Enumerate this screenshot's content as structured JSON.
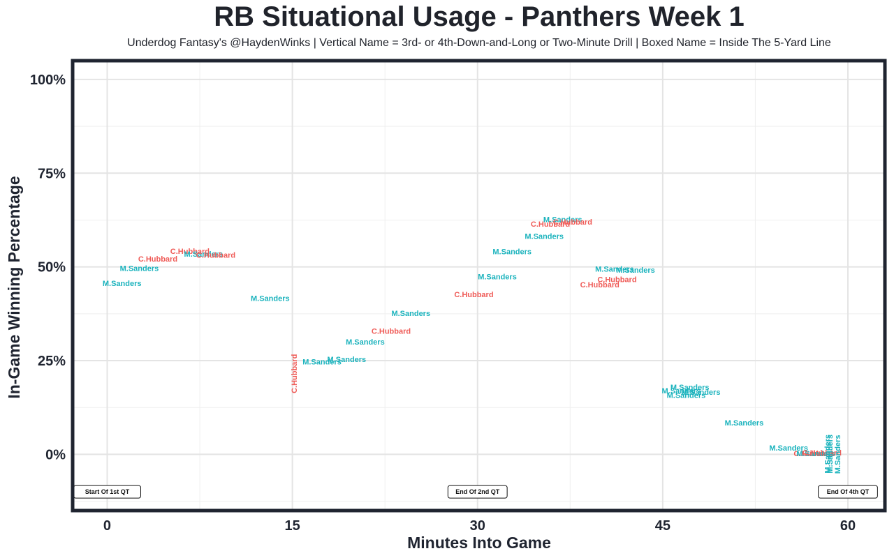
{
  "colors": {
    "sanders": "#1bb3bd",
    "hubbard": "#ef5b57",
    "frame": "#1f2430",
    "grid": "#e4e4e4"
  },
  "chart_data": {
    "type": "scatter",
    "title": "RB Situational Usage - Panthers Week 1",
    "subtitle": "Underdog Fantasy's @HaydenWinks | Vertical Name = 3rd- or 4th-Down-and-Long or Two-Minute Drill | Boxed Name = Inside The 5-Yard Line",
    "xlabel": "Minutes Into Game",
    "ylabel": "In-Game Winning Percentage",
    "xlim": [
      -2.8,
      63
    ],
    "ylim": [
      -15,
      105
    ],
    "x_ticks": [
      0,
      15,
      30,
      45,
      60
    ],
    "x_tick_labels": [
      "0",
      "15",
      "30",
      "45",
      "60"
    ],
    "y_ticks": [
      0,
      25,
      50,
      75,
      100
    ],
    "y_tick_labels": [
      "0%",
      "25%",
      "50%",
      "75%",
      "100%"
    ],
    "players": {
      "sanders": "M.Sanders",
      "hubbard": "C.Hubbard"
    },
    "points": [
      {
        "x": 1.2,
        "y": 45.5,
        "p": "sanders",
        "v": false
      },
      {
        "x": 2.6,
        "y": 49.5,
        "p": "sanders",
        "v": false
      },
      {
        "x": 4.1,
        "y": 52,
        "p": "hubbard",
        "v": false
      },
      {
        "x": 6.7,
        "y": 54,
        "p": "hubbard",
        "v": false
      },
      {
        "x": 7.8,
        "y": 53.3,
        "p": "sanders",
        "v": false
      },
      {
        "x": 8.8,
        "y": 53,
        "p": "hubbard",
        "v": false
      },
      {
        "x": 13.2,
        "y": 41.5,
        "p": "sanders",
        "v": false
      },
      {
        "x": 15.2,
        "y": 21.5,
        "p": "hubbard",
        "v": true
      },
      {
        "x": 17.4,
        "y": 24.5,
        "p": "sanders",
        "v": false
      },
      {
        "x": 19.4,
        "y": 25.2,
        "p": "sanders",
        "v": false
      },
      {
        "x": 20.9,
        "y": 29.8,
        "p": "sanders",
        "v": false
      },
      {
        "x": 23.0,
        "y": 32.7,
        "p": "hubbard",
        "v": false
      },
      {
        "x": 24.6,
        "y": 37.5,
        "p": "sanders",
        "v": false
      },
      {
        "x": 29.7,
        "y": 42.5,
        "p": "hubbard",
        "v": false
      },
      {
        "x": 31.6,
        "y": 47.2,
        "p": "sanders",
        "v": false
      },
      {
        "x": 32.8,
        "y": 53.9,
        "p": "sanders",
        "v": false
      },
      {
        "x": 35.4,
        "y": 58,
        "p": "sanders",
        "v": false
      },
      {
        "x": 35.9,
        "y": 61.3,
        "p": "hubbard",
        "v": false
      },
      {
        "x": 36.9,
        "y": 62.5,
        "p": "sanders",
        "v": false
      },
      {
        "x": 37.7,
        "y": 61.8,
        "p": "hubbard",
        "v": false
      },
      {
        "x": 39.9,
        "y": 45.1,
        "p": "hubbard",
        "v": false
      },
      {
        "x": 41.1,
        "y": 49.3,
        "p": "sanders",
        "v": false
      },
      {
        "x": 41.3,
        "y": 46.5,
        "p": "hubbard",
        "v": false
      },
      {
        "x": 42.8,
        "y": 49,
        "p": "sanders",
        "v": false
      },
      {
        "x": 46.5,
        "y": 16.8,
        "p": "sanders",
        "v": false
      },
      {
        "x": 47.2,
        "y": 17.7,
        "p": "sanders",
        "v": false
      },
      {
        "x": 46.9,
        "y": 15.6,
        "p": "sanders",
        "v": false
      },
      {
        "x": 48.1,
        "y": 16.4,
        "p": "sanders",
        "v": false
      },
      {
        "x": 51.6,
        "y": 8.3,
        "p": "sanders",
        "v": false
      },
      {
        "x": 55.2,
        "y": 1.6,
        "p": "sanders",
        "v": false
      },
      {
        "x": 57.2,
        "y": 0.1,
        "p": "hubbard",
        "v": false
      },
      {
        "x": 57.4,
        "y": 0.1,
        "p": "sanders",
        "v": false
      },
      {
        "x": 57.9,
        "y": 0.3,
        "p": "hubbard",
        "v": false
      },
      {
        "x": 58.4,
        "y": 0.1,
        "p": "sanders",
        "v": true
      },
      {
        "x": 58.6,
        "y": 0.1,
        "p": "sanders",
        "v": true
      },
      {
        "x": 59.2,
        "y": 0,
        "p": "sanders",
        "v": true
      }
    ],
    "annotations": [
      {
        "x": 0,
        "y": -10,
        "text": "Start Of 1st QT"
      },
      {
        "x": 30,
        "y": -10,
        "text": "End Of 2nd QT"
      },
      {
        "x": 60,
        "y": -10,
        "text": "End Of 4th QT"
      }
    ]
  }
}
